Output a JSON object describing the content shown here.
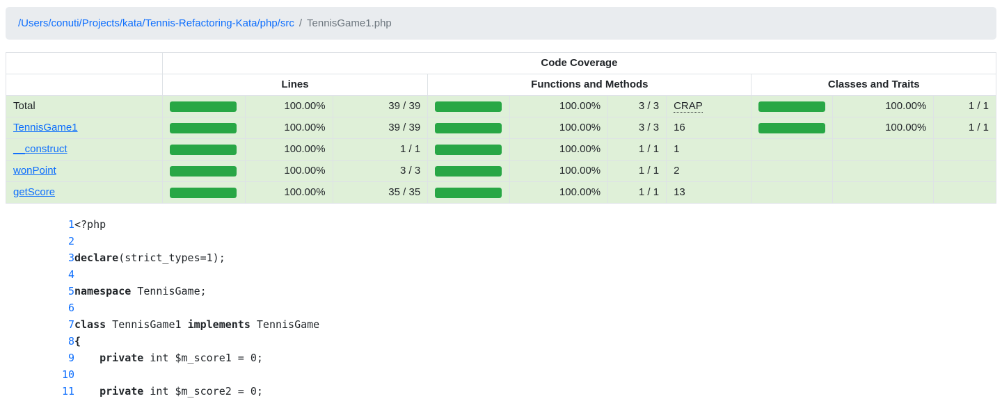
{
  "breadcrumb": {
    "path": "/Users/conuti/Projects/kata/Tennis-Refactoring-Kata/php/src",
    "separator": "/",
    "file": "TennisGame1.php"
  },
  "table": {
    "title": "Code Coverage",
    "groups": [
      "Lines",
      "Functions and Methods",
      "Classes and Traits"
    ],
    "rows": [
      {
        "name": "Total",
        "link": false,
        "lines_bar": 100,
        "lines_pct": "100.00%",
        "lines_num": "39 / 39",
        "fn_bar": 100,
        "fn_pct": "100.00%",
        "fn_num": "3 / 3",
        "crap": "CRAP",
        "crap_abbr": true,
        "cls_show": true,
        "cls_bar": 100,
        "cls_pct": "100.00%",
        "cls_num": "1 / 1"
      },
      {
        "name": "TennisGame1",
        "link": true,
        "lines_bar": 100,
        "lines_pct": "100.00%",
        "lines_num": "39 / 39",
        "fn_bar": 100,
        "fn_pct": "100.00%",
        "fn_num": "3 / 3",
        "crap": "16",
        "crap_abbr": false,
        "cls_show": true,
        "cls_bar": 100,
        "cls_pct": "100.00%",
        "cls_num": "1 / 1"
      },
      {
        "name": "__construct",
        "link": true,
        "lines_bar": 100,
        "lines_pct": "100.00%",
        "lines_num": "1 / 1",
        "fn_bar": 100,
        "fn_pct": "100.00%",
        "fn_num": "1 / 1",
        "crap": "1",
        "crap_abbr": false,
        "cls_show": false,
        "cls_bar": 0,
        "cls_pct": "",
        "cls_num": ""
      },
      {
        "name": "wonPoint",
        "link": true,
        "lines_bar": 100,
        "lines_pct": "100.00%",
        "lines_num": "3 / 3",
        "fn_bar": 100,
        "fn_pct": "100.00%",
        "fn_num": "1 / 1",
        "crap": "2",
        "crap_abbr": false,
        "cls_show": false,
        "cls_bar": 0,
        "cls_pct": "",
        "cls_num": ""
      },
      {
        "name": "getScore",
        "link": true,
        "lines_bar": 100,
        "lines_pct": "100.00%",
        "lines_num": "35 / 35",
        "fn_bar": 100,
        "fn_pct": "100.00%",
        "fn_num": "1 / 1",
        "crap": "13",
        "crap_abbr": false,
        "cls_show": false,
        "cls_bar": 0,
        "cls_pct": "",
        "cls_num": ""
      }
    ]
  },
  "code": {
    "lines": [
      {
        "n": "1",
        "segments": [
          [
            "d",
            "<?php"
          ]
        ]
      },
      {
        "n": "2",
        "segments": []
      },
      {
        "n": "3",
        "segments": [
          [
            "k",
            "declare"
          ],
          [
            "d",
            "(strict_types=1);"
          ]
        ]
      },
      {
        "n": "4",
        "segments": []
      },
      {
        "n": "5",
        "segments": [
          [
            "k",
            "namespace"
          ],
          [
            "d",
            " TennisGame;"
          ]
        ]
      },
      {
        "n": "6",
        "segments": []
      },
      {
        "n": "7",
        "segments": [
          [
            "k",
            "class"
          ],
          [
            "d",
            " TennisGame1 "
          ],
          [
            "k",
            "implements"
          ],
          [
            "d",
            " TennisGame"
          ]
        ]
      },
      {
        "n": "8",
        "segments": [
          [
            "k",
            "{"
          ]
        ]
      },
      {
        "n": "9",
        "segments": [
          [
            "d",
            "    "
          ],
          [
            "k",
            "private"
          ],
          [
            "d",
            " int $m_score1 = 0;"
          ]
        ]
      },
      {
        "n": "10",
        "segments": []
      },
      {
        "n": "11",
        "segments": [
          [
            "d",
            "    "
          ],
          [
            "k",
            "private"
          ],
          [
            "d",
            " int $m_score2 = 0;"
          ]
        ]
      }
    ]
  },
  "colors": {
    "link": "#0d6efd",
    "row_success": "#dff0d8",
    "bar_fill": "#28a745",
    "breadcrumb_bg": "#e9ecef",
    "muted": "#6c757d",
    "border": "#dee2e6"
  }
}
